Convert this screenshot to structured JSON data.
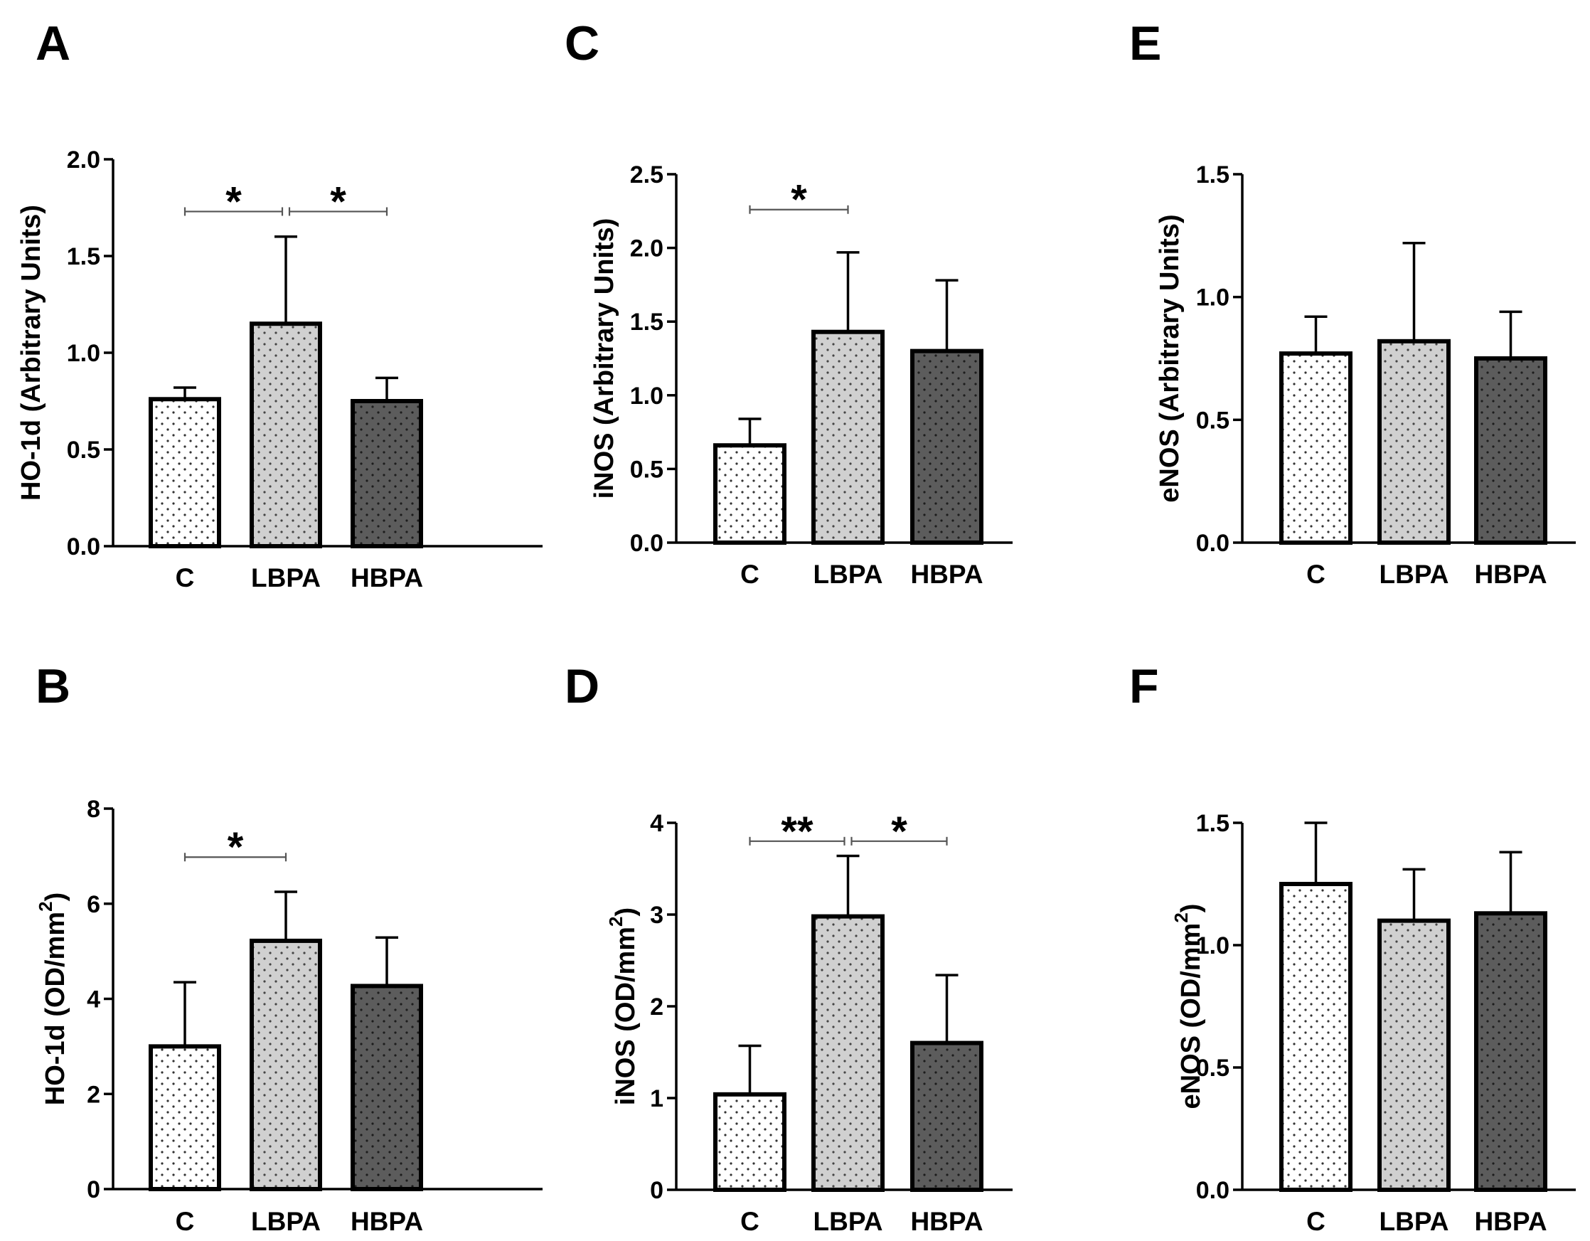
{
  "chart_data": [
    {
      "panel": "A",
      "type": "bar",
      "ylabel": "HO-1d (Arbitrary Units)",
      "ylim": [
        0,
        2.0
      ],
      "yticks": [
        "0.0",
        "0.5",
        "1.0",
        "1.5",
        "2.0"
      ],
      "categories": [
        "C",
        "LBPA",
        "HBPA"
      ],
      "values": [
        0.76,
        1.15,
        0.75
      ],
      "errors": [
        0.06,
        0.45,
        0.12
      ],
      "significance": [
        {
          "from": 0,
          "to": 1,
          "label": "*",
          "y": 1.73
        },
        {
          "from": 1,
          "to": 2,
          "label": "*",
          "y": 1.73
        }
      ]
    },
    {
      "panel": "B",
      "type": "bar",
      "ylabel": "HO-1d (OD/mm",
      "ylabel_sup": "2",
      "ylabel_end": ")",
      "ylim": [
        0,
        8
      ],
      "yticks": [
        "0",
        "2",
        "4",
        "6",
        "8"
      ],
      "categories": [
        "C",
        "LBPA",
        "HBPA"
      ],
      "values": [
        3.0,
        5.22,
        4.27
      ],
      "errors": [
        1.35,
        1.03,
        1.02
      ],
      "significance": [
        {
          "from": 0,
          "to": 1,
          "label": "*",
          "y": 6.98
        }
      ]
    },
    {
      "panel": "C",
      "type": "bar",
      "ylabel": "iNOS (Arbitrary Units)",
      "ylim": [
        0,
        2.5
      ],
      "yticks": [
        "0.0",
        "0.5",
        "1.0",
        "1.5",
        "2.0",
        "2.5"
      ],
      "categories": [
        "C",
        "LBPA",
        "HBPA"
      ],
      "values": [
        0.66,
        1.43,
        1.3
      ],
      "errors": [
        0.18,
        0.54,
        0.48
      ],
      "significance": [
        {
          "from": 0,
          "to": 1,
          "label": "*",
          "y": 2.26
        }
      ]
    },
    {
      "panel": "D",
      "type": "bar",
      "ylabel": "iNOS (OD/mm",
      "ylabel_sup": "2",
      "ylabel_end": ")",
      "ylim": [
        0,
        4
      ],
      "yticks": [
        "0",
        "1",
        "2",
        "3",
        "4"
      ],
      "categories": [
        "C",
        "LBPA",
        "HBPA"
      ],
      "values": [
        1.04,
        2.98,
        1.6
      ],
      "errors": [
        0.53,
        0.66,
        0.74
      ],
      "significance": [
        {
          "from": 0,
          "to": 1,
          "label": "**",
          "y": 3.8
        },
        {
          "from": 1,
          "to": 2,
          "label": "*",
          "y": 3.8
        }
      ]
    },
    {
      "panel": "E",
      "type": "bar",
      "ylabel": "eNOS (Arbitrary Units)",
      "ylim": [
        0,
        1.5
      ],
      "yticks": [
        "0.0",
        "0.5",
        "1.0",
        "1.5"
      ],
      "categories": [
        "C",
        "LBPA",
        "HBPA"
      ],
      "values": [
        0.77,
        0.82,
        0.75
      ],
      "errors": [
        0.15,
        0.4,
        0.19
      ],
      "significance": []
    },
    {
      "panel": "F",
      "type": "bar",
      "ylabel": "eNOS (OD/mm",
      "ylabel_sup": "2",
      "ylabel_end": ")",
      "ylim": [
        0,
        1.5
      ],
      "yticks": [
        "0.0",
        "0.5",
        "1.0",
        "1.5"
      ],
      "categories": [
        "C",
        "LBPA",
        "HBPA"
      ],
      "values": [
        1.25,
        1.1,
        1.13
      ],
      "errors": [
        0.25,
        0.21,
        0.25
      ],
      "significance": []
    }
  ],
  "colors": {
    "bar_fills": [
      "#ffffff",
      "#d0d0d0",
      "#5c5c5c"
    ],
    "dots": [
      "#333333",
      "#444444",
      "#1c1c1c"
    ],
    "stroke": "#000000",
    "sig_line": "#555555"
  }
}
